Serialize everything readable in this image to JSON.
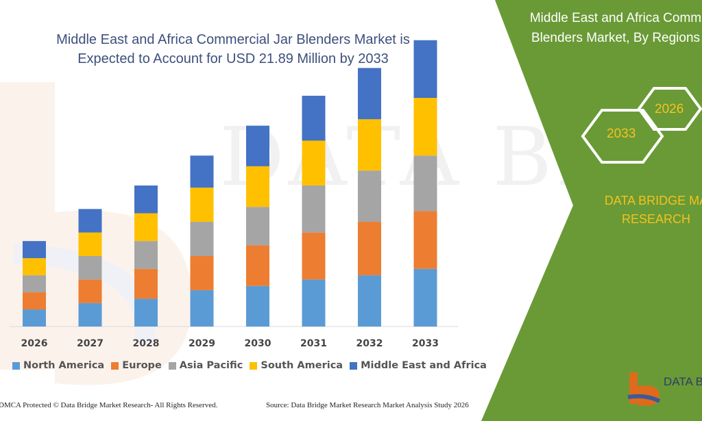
{
  "title_line1": "Middle East and Africa Commercial Jar Blenders Market is",
  "title_line2": "Expected to Account for USD 21.89 Million by 2033",
  "right_panel": {
    "title_line1": "Middle East and Africa Comm",
    "title_line2": "Blenders Market, By Regions",
    "hex_2026": "2026",
    "hex_2033": "2033",
    "brand_line1": "DATA BRIDGE MA",
    "brand_line2": "RESEARCH",
    "logo_text": "DATA B"
  },
  "watermark": "DATA BRIDGE",
  "footer": {
    "left": "DMCA Protected © Data Bridge Market Research-  All Rights Reserved.",
    "right": "Source: Data Bridge Market Research  Market Analysis Study 2026"
  },
  "colors": {
    "green": "#6a9a36",
    "accent_yellow": "#f3c21f",
    "title_blue": "#3d4f7c"
  },
  "chart_data": {
    "type": "bar",
    "stacked": true,
    "categories": [
      "2026",
      "2027",
      "2028",
      "2029",
      "2030",
      "2031",
      "2032",
      "2033"
    ],
    "series": [
      {
        "name": "North America",
        "color": "#5b9bd5",
        "values": [
          4.0,
          5.5,
          6.5,
          8.5,
          9.5,
          11.0,
          12.0,
          13.5
        ]
      },
      {
        "name": "Europe",
        "color": "#ed7d31",
        "values": [
          4.0,
          5.5,
          7.0,
          8.0,
          9.5,
          11.0,
          12.5,
          13.5
        ]
      },
      {
        "name": "Asia Pacific",
        "color": "#a5a5a5",
        "values": [
          4.0,
          5.5,
          6.5,
          8.0,
          9.0,
          11.0,
          12.0,
          13.0
        ]
      },
      {
        "name": "South America",
        "color": "#ffc000",
        "values": [
          4.0,
          5.5,
          6.5,
          8.0,
          9.5,
          10.5,
          12.0,
          13.5
        ]
      },
      {
        "name": "Middle East and Africa",
        "color": "#4472c4",
        "values": [
          4.0,
          5.5,
          6.5,
          7.5,
          9.5,
          10.5,
          12.0,
          13.5
        ]
      }
    ],
    "legend_position": "bottom",
    "grid": false,
    "ylim": [
      0,
      70
    ]
  }
}
